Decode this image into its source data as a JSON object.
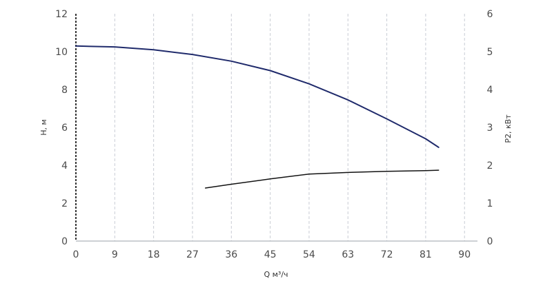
{
  "chart_data": {
    "type": "line",
    "title": "",
    "xlabel": "Q м³/ч",
    "ylabel_left": "H, м",
    "ylabel_right": "P2, кВт",
    "xlim": [
      0,
      93
    ],
    "ylim_left": [
      0,
      12
    ],
    "ylim_right": [
      0,
      6
    ],
    "x_ticks": [
      "0",
      "9",
      "18",
      "27",
      "36",
      "45",
      "54",
      "63",
      "72",
      "81",
      "90"
    ],
    "y_ticks_left": [
      "0",
      "2",
      "4",
      "6",
      "8",
      "10",
      "12"
    ],
    "y_ticks_right": [
      "0",
      "1",
      "2",
      "3",
      "4",
      "5",
      "6"
    ],
    "grid": {
      "vertical": true,
      "horizontal": false,
      "style": "dashed"
    },
    "series": [
      {
        "axis": "left",
        "color": "#1f2a6b",
        "x": [
          0,
          9,
          18,
          27,
          36,
          45,
          54,
          63,
          72,
          81,
          84
        ],
        "y": [
          10.3,
          10.25,
          10.1,
          9.85,
          9.5,
          9.0,
          8.3,
          7.45,
          6.45,
          5.4,
          4.95
        ]
      },
      {
        "axis": "right",
        "color": "#111111",
        "x": [
          30,
          36,
          45,
          54,
          63,
          72,
          81,
          84
        ],
        "y": [
          1.4,
          1.5,
          1.64,
          1.77,
          1.81,
          1.84,
          1.86,
          1.87
        ]
      }
    ]
  }
}
